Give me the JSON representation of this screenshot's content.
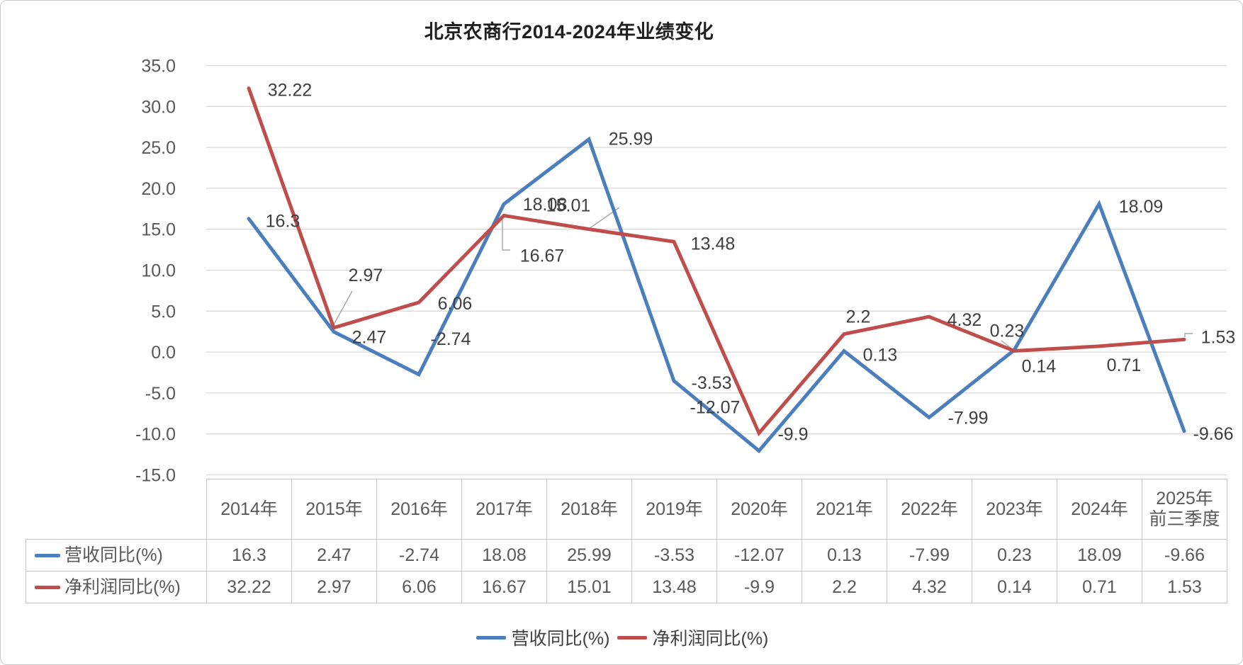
{
  "title": "北京农商行2014-2024年业绩变化",
  "chart_data": {
    "type": "line",
    "title": "北京农商行2014-2024年业绩变化",
    "categories": [
      "2014年",
      "2015年",
      "2016年",
      "2017年",
      "2018年",
      "2019年",
      "2020年",
      "2021年",
      "2022年",
      "2023年",
      "2024年",
      "2025年前三季度"
    ],
    "series": [
      {
        "name": "营收同比(%)",
        "color": "#4A7EBD",
        "values": [
          16.3,
          2.47,
          -2.74,
          18.08,
          25.99,
          -3.53,
          -12.07,
          0.13,
          -7.99,
          0.23,
          18.09,
          -9.66
        ]
      },
      {
        "name": "净利润同比(%)",
        "color": "#BF4D4B",
        "values": [
          32.22,
          2.97,
          6.06,
          16.67,
          15.01,
          13.48,
          -9.9,
          2.2,
          4.32,
          0.14,
          0.71,
          1.53
        ]
      }
    ],
    "ylim": [
      -15,
      35
    ],
    "ytick_step": 5,
    "y_tick_labels": [
      "35.0",
      "30.0",
      "25.0",
      "20.0",
      "15.0",
      "10.0",
      "5.0",
      "0.0",
      "-5.0",
      "-10.0",
      "-15.0"
    ],
    "grid": true,
    "legend_position": "bottom",
    "data_labels_shown": true
  },
  "table": {
    "corner_label": ""
  }
}
